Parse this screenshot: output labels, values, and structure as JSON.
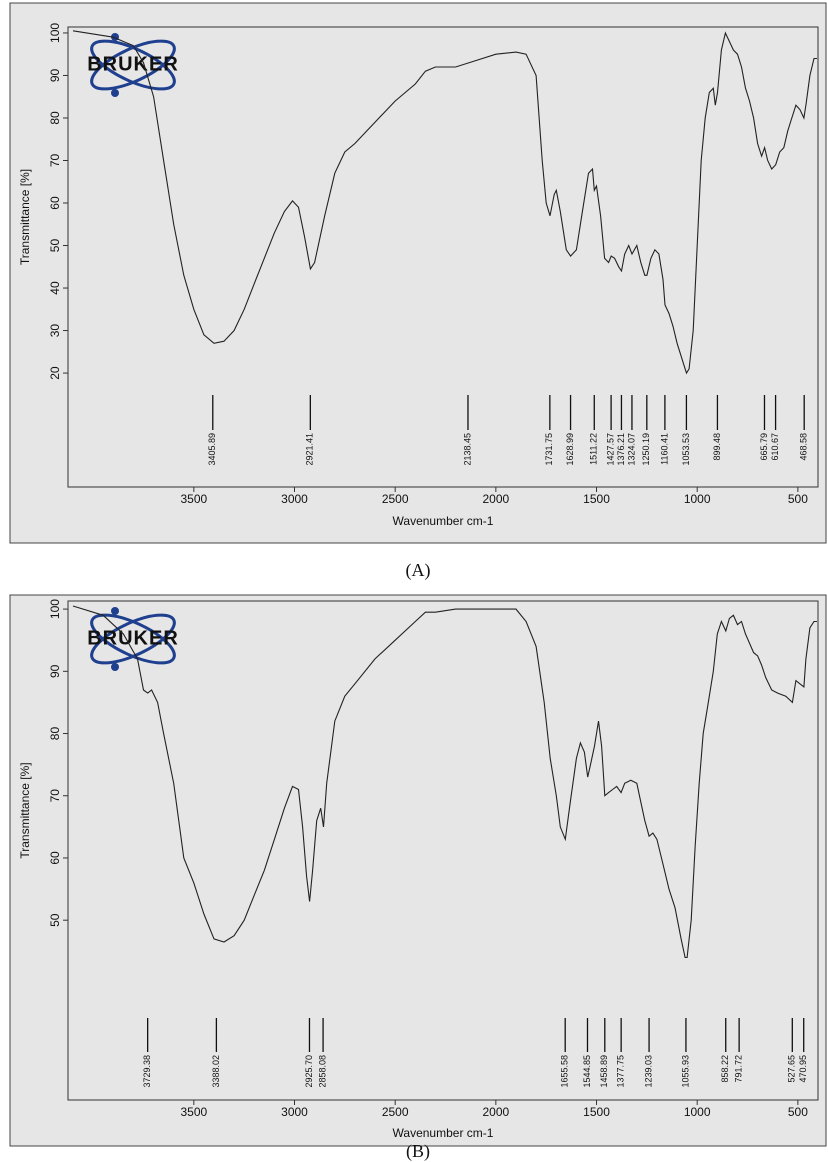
{
  "chart_data": [
    {
      "type": "line",
      "caption": "(A)",
      "logo": "BRUKER",
      "x_label": "Wavenumber cm-1",
      "y_label": "Transmittance [%]",
      "color": "#222222",
      "xlim": [
        4125,
        400
      ],
      "xticks": [
        3500,
        3000,
        2500,
        2000,
        1500,
        1000,
        500
      ],
      "ylim": [
        -6.8,
        101.4
      ],
      "yticks": [
        20,
        30,
        40,
        50,
        60,
        70,
        80,
        90,
        100
      ],
      "x": [
        4100,
        3900,
        3800,
        3750,
        3700,
        3650,
        3600,
        3550,
        3500,
        3450,
        3400,
        3350,
        3300,
        3250,
        3200,
        3150,
        3100,
        3050,
        3010,
        2980,
        2950,
        2921,
        2900,
        2850,
        2800,
        2750,
        2700,
        2600,
        2500,
        2400,
        2350,
        2300,
        2200,
        2100,
        2000,
        1900,
        1850,
        1800,
        1770,
        1750,
        1731,
        1710,
        1700,
        1680,
        1650,
        1629,
        1600,
        1570,
        1540,
        1520,
        1511,
        1500,
        1480,
        1460,
        1440,
        1427,
        1410,
        1390,
        1376,
        1360,
        1340,
        1324,
        1300,
        1280,
        1260,
        1250,
        1230,
        1210,
        1190,
        1170,
        1160,
        1140,
        1120,
        1100,
        1080,
        1060,
        1053,
        1040,
        1020,
        1000,
        980,
        960,
        940,
        920,
        910,
        899,
        880,
        860,
        840,
        820,
        800,
        780,
        760,
        740,
        720,
        700,
        680,
        665,
        650,
        630,
        610,
        590,
        570,
        550,
        530,
        510,
        490,
        470,
        460,
        440,
        420,
        405
      ],
      "values": [
        100.5,
        99,
        97,
        93,
        85,
        70,
        55,
        43,
        35,
        29,
        27,
        27.5,
        30,
        35,
        41,
        47,
        53,
        58,
        60.5,
        59,
        52,
        44.5,
        46,
        57,
        67,
        72,
        74,
        79,
        84,
        88,
        91,
        92,
        92,
        93.5,
        95,
        95.5,
        95,
        90,
        70,
        60,
        57,
        62,
        63,
        58,
        49,
        47.5,
        49,
        58,
        67,
        68,
        63,
        64,
        57,
        47,
        46,
        47.5,
        47,
        45,
        44,
        48,
        50,
        48,
        50,
        46,
        43,
        43,
        47,
        49,
        48,
        42,
        36,
        34,
        31,
        27,
        24,
        21,
        20,
        21,
        30,
        50,
        70,
        80,
        86,
        87,
        83,
        86,
        96,
        100,
        98,
        96,
        95,
        92,
        87,
        84,
        80,
        74,
        71,
        73,
        70,
        68,
        69,
        72,
        73,
        77,
        80,
        83,
        82,
        80,
        83,
        90,
        94,
        94
      ],
      "peaks": [
        3405.89,
        2921.41,
        2138.45,
        1731.75,
        1628.99,
        1511.22,
        1427.57,
        1376.21,
        1324.07,
        1250.19,
        1160.41,
        1053.53,
        899.48,
        665.79,
        610.67,
        468.58
      ]
    },
    {
      "type": "line",
      "caption": "(B)",
      "logo": "BRUKER",
      "x_label": "Wavenumber cm-1",
      "y_label": "Transmittance [%]",
      "color": "#222222",
      "xlim": [
        4125,
        400
      ],
      "xticks": [
        3500,
        3000,
        2500,
        2000,
        1500,
        1000,
        500
      ],
      "ylim": [
        21.1,
        101.3
      ],
      "yticks": [
        50,
        60,
        70,
        80,
        90,
        100
      ],
      "x": [
        4100,
        3950,
        3850,
        3780,
        3750,
        3729,
        3710,
        3680,
        3650,
        3600,
        3550,
        3500,
        3450,
        3400,
        3350,
        3300,
        3250,
        3200,
        3150,
        3100,
        3050,
        3010,
        2980,
        2960,
        2940,
        2925,
        2910,
        2890,
        2870,
        2856,
        2840,
        2800,
        2750,
        2700,
        2600,
        2500,
        2400,
        2350,
        2300,
        2200,
        2000,
        1900,
        1850,
        1800,
        1760,
        1730,
        1700,
        1680,
        1655,
        1630,
        1600,
        1580,
        1560,
        1544,
        1530,
        1510,
        1490,
        1475,
        1459,
        1440,
        1420,
        1400,
        1378,
        1360,
        1330,
        1300,
        1280,
        1260,
        1239,
        1220,
        1200,
        1170,
        1140,
        1110,
        1080,
        1060,
        1050,
        1030,
        1010,
        990,
        970,
        950,
        920,
        900,
        880,
        858,
        840,
        820,
        800,
        780,
        760,
        720,
        700,
        680,
        660,
        630,
        600,
        560,
        527,
        510,
        490,
        470,
        460,
        440,
        420,
        405
      ],
      "values": [
        100.5,
        99,
        96,
        92,
        87,
        86.5,
        87,
        85,
        80,
        72,
        60,
        56,
        51,
        47,
        46.5,
        47.5,
        50,
        54,
        58,
        63,
        68,
        71.5,
        71,
        65,
        57,
        53,
        58,
        66,
        68,
        65,
        72,
        82,
        86,
        88,
        92,
        95,
        98,
        99.5,
        99.5,
        100,
        100,
        100,
        98,
        94,
        85,
        76,
        70,
        65,
        63,
        69,
        76,
        78.5,
        77,
        73,
        75,
        78,
        82,
        78,
        70,
        70.5,
        71,
        71.5,
        70.5,
        72,
        72.5,
        72,
        69,
        66,
        63.5,
        64,
        63,
        59,
        55,
        52,
        47,
        44,
        44,
        50,
        62,
        72,
        80,
        84,
        90,
        96,
        98,
        96.5,
        98.5,
        99,
        97.5,
        98,
        96,
        93,
        92.5,
        91,
        89,
        87,
        86.5,
        86,
        85,
        88.5,
        88,
        87.5,
        92,
        97,
        98,
        98
      ],
      "peaks": [
        3729.38,
        3388.02,
        {
          "value": 2925.7,
          "label": "2925.70"
        },
        2858.08,
        1655.58,
        1544.85,
        1458.89,
        1377.75,
        1239.03,
        1055.93,
        858.22,
        791.72,
        527.65,
        470.95
      ]
    }
  ]
}
